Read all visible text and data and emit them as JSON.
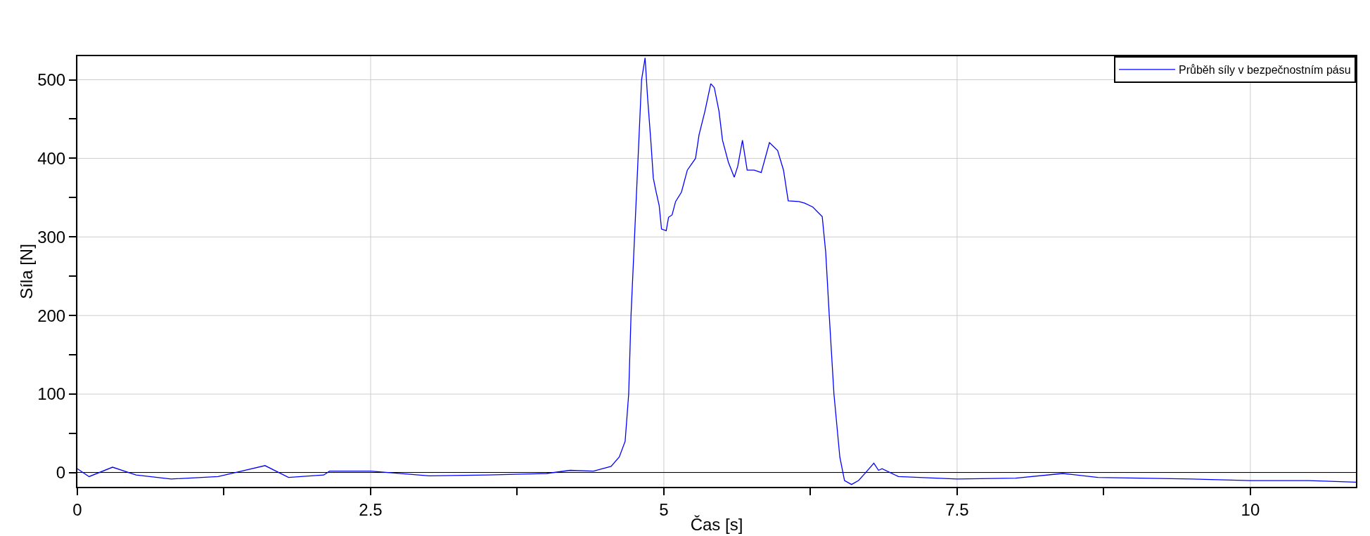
{
  "chart_data": {
    "type": "line",
    "xlabel": "Čas [s]",
    "ylabel": "Síla [N]",
    "xlim": [
      0,
      10.9
    ],
    "ylim": [
      -18,
      530
    ],
    "xticks": [
      0,
      {
        "value": 1.25,
        "label": null
      },
      2.5,
      {
        "value": 3.75,
        "label": null
      },
      5,
      {
        "value": 6.25,
        "label": null
      },
      7.5,
      {
        "value": 8.75,
        "label": null
      },
      10
    ],
    "yticks": [
      0,
      {
        "value": 50,
        "label": null
      },
      100,
      {
        "value": 150,
        "label": null
      },
      200,
      {
        "value": 250,
        "label": null
      },
      300,
      {
        "value": 350,
        "label": null
      },
      400,
      {
        "value": 450,
        "label": null
      },
      500
    ],
    "grid": true,
    "legend": "top right",
    "marker": "none",
    "line_style": "solid",
    "series": [
      {
        "name": "Průběh síly v bezpečnostním pásu",
        "color": "#0000ff",
        "x": [
          0,
          0.1,
          0.3,
          0.5,
          0.8,
          1.2,
          1.4,
          1.6,
          1.8,
          2.1,
          2.15,
          2.5,
          3.0,
          3.5,
          4.0,
          4.2,
          4.4,
          4.55,
          4.62,
          4.67,
          4.7,
          4.72,
          4.75,
          4.78,
          4.81,
          4.84,
          4.86,
          4.89,
          4.91,
          4.93,
          4.96,
          4.98,
          5.02,
          5.04,
          5.07,
          5.1,
          5.15,
          5.2,
          5.27,
          5.3,
          5.35,
          5.4,
          5.43,
          5.47,
          5.5,
          5.55,
          5.6,
          5.63,
          5.67,
          5.71,
          5.77,
          5.83,
          5.9,
          5.97,
          6.02,
          6.06,
          6.15,
          6.2,
          6.27,
          6.35,
          6.38,
          6.41,
          6.45,
          6.5,
          6.54,
          6.6,
          6.66,
          6.72,
          6.79,
          6.83,
          6.86,
          7.0,
          7.5,
          8.0,
          8.4,
          8.7,
          9.5,
          10.0,
          10.5,
          10.9
        ],
        "values": [
          5,
          -5,
          7,
          -3,
          -8,
          -5,
          2,
          9,
          -6,
          -3,
          2,
          2,
          -4,
          -3,
          -1,
          3,
          2,
          8,
          20,
          40,
          100,
          200,
          300,
          400,
          500,
          528,
          480,
          420,
          375,
          360,
          340,
          310,
          308,
          325,
          328,
          345,
          357,
          385,
          400,
          430,
          460,
          495,
          490,
          460,
          423,
          395,
          376,
          390,
          423,
          385,
          385,
          382,
          420,
          410,
          385,
          346,
          345,
          343,
          338,
          326,
          280,
          200,
          100,
          20,
          -10,
          -15,
          -10,
          0,
          12,
          3,
          5,
          -5,
          -8,
          -7,
          -1,
          -6,
          -8,
          -10,
          -10,
          -12
        ]
      }
    ]
  }
}
